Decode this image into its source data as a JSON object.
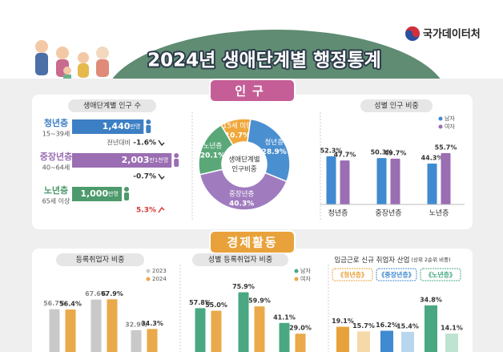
{
  "header": {
    "logo": "국가데이터처",
    "title": "2024년 생애단계별 행정통계"
  },
  "population": {
    "section": "인구",
    "counts": {
      "title": "생애단계별 인구 수",
      "yoy": "전년대비",
      "rows": [
        {
          "label": "청년층",
          "age": "15~39세",
          "value": 1440,
          "value_label": "1,440",
          "unit": "만명",
          "change": "-1.6%",
          "color": "#3d7fc4",
          "change_color": "#333333"
        },
        {
          "label": "중장년층",
          "age": "40~64세",
          "value": 2003.1,
          "value_label": "2,003",
          "unit": "만1천명",
          "change": "-0.7%",
          "color": "#9b6db3",
          "change_color": "#333333"
        },
        {
          "label": "노년층",
          "age": "65세 이상",
          "value": 1000,
          "value_label": "1,000",
          "unit": "만명",
          "change": "5.3%",
          "color": "#4d9a6c",
          "change_color": "#d63b3b"
        }
      ]
    },
    "share": {
      "center": [
        "생애단계별",
        "인구비중"
      ],
      "slices": [
        {
          "name": "15세 미만",
          "value": 10.7,
          "value_label": "10.7%",
          "color": "#f0a83c"
        },
        {
          "name": "청년층",
          "value": 28.9,
          "value_label": "28.9%",
          "color": "#4a8fd0"
        },
        {
          "name": "중장년층",
          "value": 40.3,
          "value_label": "40.3%",
          "color": "#a07cbf"
        },
        {
          "name": "노년층",
          "value": 20.1,
          "value_label": "20.1%",
          "color": "#5aa878"
        }
      ]
    },
    "gender": {
      "title": "성별 인구 비중",
      "categories": [
        "청년층",
        "중장년층",
        "노년층"
      ],
      "series": [
        {
          "name": "남자",
          "color": "#3f8ad0",
          "values": [
            52.3,
            50.3,
            44.3
          ],
          "value_labels": [
            "52.3%",
            "50.3%",
            "44.3%"
          ]
        },
        {
          "name": "여자",
          "color": "#9b6db3",
          "values": [
            47.7,
            49.7,
            55.7
          ],
          "value_labels": [
            "47.7%",
            "49.7%",
            "55.7%"
          ]
        }
      ]
    }
  },
  "economy": {
    "section": "경제활동",
    "registered": {
      "title": "등록취업자 비중",
      "series": [
        {
          "name": "2023",
          "color": "#c9c9c9",
          "values": [
            56.7,
            67.6,
            32.9
          ],
          "value_labels": [
            "56.7%",
            "67.6%",
            "32.9%"
          ]
        },
        {
          "name": "2024",
          "color": "#eaa94a",
          "values": [
            56.4,
            67.9,
            34.3
          ],
          "value_labels": [
            "56.4%",
            "67.9%",
            "34.3%"
          ]
        }
      ]
    },
    "gender": {
      "title": "성별 등록취업자 비중",
      "series": [
        {
          "name": "남자",
          "color": "#49a882",
          "values": [
            57.8,
            75.9,
            41.1
          ],
          "value_labels": [
            "57.8%",
            "75.9%",
            "41.1%"
          ]
        },
        {
          "name": "여자",
          "color": "#eaa94a",
          "values": [
            55.0,
            59.9,
            29.0
          ],
          "value_labels": [
            "55.0%",
            "59.9%",
            "29.0%"
          ]
        }
      ]
    },
    "industry": {
      "title": "임금근로 신규 취업자 산업",
      "note": "(상위 2순위 비중)",
      "groups": [
        {
          "label": "《청년층》",
          "color": "#e9a23b",
          "light": "#f6d9a8",
          "values": [
            19.1,
            15.7
          ],
          "value_labels": [
            "19.1%",
            "15.7%"
          ]
        },
        {
          "label": "《중장년층》",
          "color": "#3f8ad0",
          "light": "#b9d6ef",
          "values": [
            16.2,
            15.4
          ],
          "value_labels": [
            "16.2%",
            "15.4%"
          ]
        },
        {
          "label": "《노년층》",
          "color": "#49a882",
          "light": "#bfe3d1",
          "values": [
            34.8,
            14.1
          ],
          "value_labels": [
            "34.8%",
            "14.1%"
          ]
        }
      ]
    }
  }
}
